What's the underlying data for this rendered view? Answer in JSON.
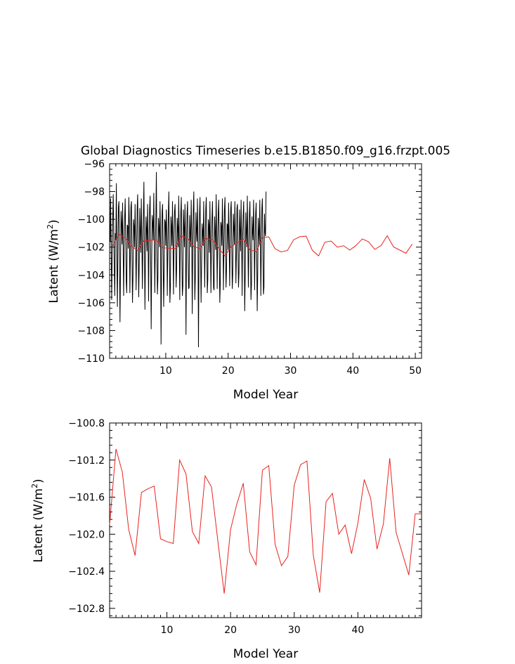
{
  "chart_data": [
    {
      "type": "line",
      "title": "Global Diagnostics Timeseries b.e15.B1850.f09_g16.frzpt.005",
      "xlabel": "Model Year",
      "ylabel": "Latent (W/m",
      "ylabel_sup": "2",
      "ylabel_close": ")",
      "xlim": [
        1,
        51
      ],
      "ylim": [
        -110,
        -96
      ],
      "xticks": [
        10,
        20,
        30,
        40,
        50
      ],
      "yticks": [
        -110,
        -108,
        -106,
        -104,
        -102,
        -100,
        -98,
        -96
      ],
      "ytick_labels": [
        "−110",
        "−108",
        "−106",
        "−104",
        "−102",
        "−100",
        "−98",
        "−96"
      ],
      "series": [
        {
          "color": "#000000",
          "style": "monthly",
          "x_start": 1.0,
          "x_step": 0.0833,
          "values": [
            -101.0,
            -101.6,
            -98.5,
            -102.3,
            -105.8,
            -102.4,
            -100.0,
            -98.2,
            -100.8,
            -103.6,
            -105.5,
            -101.0,
            -101.5,
            -97.4,
            -103.1,
            -106.3,
            -101.7,
            -99.1,
            -98.7,
            -102.8,
            -107.4,
            -103.4,
            -99.4,
            -100.3,
            -101.8,
            -98.8,
            -101.9,
            -105.5,
            -102.0,
            -99.9,
            -98.5,
            -101.4,
            -104.5,
            -105.3,
            -100.4,
            -100.5,
            -102.1,
            -98.4,
            -100.2,
            -105.3,
            -102.5,
            -99.1,
            -98.7,
            -102.4,
            -106.0,
            -104.1,
            -100.0,
            -100.5,
            -102.0,
            -98.9,
            -101.5,
            -105.1,
            -102.4,
            -99.2,
            -98.2,
            -101.8,
            -105.6,
            -103.2,
            -99.2,
            -100.9,
            -102.4,
            -98.5,
            -101.1,
            -105.0,
            -102.1,
            -99.7,
            -97.3,
            -102.2,
            -106.5,
            -102.6,
            -99.8,
            -100.7,
            -102.3,
            -98.9,
            -101.3,
            -105.9,
            -101.5,
            -99.2,
            -98.3,
            -102.7,
            -107.9,
            -103.1,
            -99.7,
            -100.2,
            -101.5,
            -98.1,
            -101.7,
            -105.3,
            -102.0,
            -99.8,
            -96.6,
            -102.5,
            -105.4,
            -104.2,
            -99.9,
            -100.6,
            -102.0,
            -98.7,
            -101.4,
            -109.0,
            -102.8,
            -99.5,
            -98.9,
            -102.5,
            -106.3,
            -103.8,
            -100.0,
            -100.2,
            -101.9,
            -99.3,
            -100.9,
            -105.5,
            -102.2,
            -99.7,
            -98.0,
            -102.2,
            -106.0,
            -104.8,
            -99.8,
            -100.5,
            -101.9,
            -98.7,
            -102.0,
            -105.4,
            -101.1,
            -99.4,
            -98.9,
            -101.6,
            -104.9,
            -103.5,
            -99.9,
            -100.6,
            -102.0,
            -98.3,
            -101.5,
            -105.8,
            -101.7,
            -99.5,
            -98.4,
            -102.7,
            -105.5,
            -104.8,
            -99.3,
            -100.6,
            -102.0,
            -98.9,
            -101.0,
            -108.3,
            -101.9,
            -99.5,
            -98.7,
            -102.8,
            -105.0,
            -104.9,
            -99.7,
            -101.0,
            -102.0,
            -98.6,
            -100.9,
            -106.8,
            -102.1,
            -99.4,
            -98.0,
            -101.9,
            -105.8,
            -104.1,
            -99.5,
            -100.8,
            -101.6,
            -98.5,
            -101.8,
            -109.2,
            -102.5,
            -99.6,
            -98.4,
            -102.4,
            -106.0,
            -103.3,
            -100.3,
            -100.9,
            -101.9,
            -98.7,
            -101.6,
            -104.9,
            -101.7,
            -99.3,
            -98.4,
            -101.9,
            -105.3,
            -104.3,
            -100.0,
            -100.4,
            -102.4,
            -98.7,
            -101.7,
            -105.3,
            -101.6,
            -99.9,
            -98.7,
            -102.2,
            -104.9,
            -105.1,
            -99.8,
            -100.9,
            -102.2,
            -98.2,
            -101.2,
            -105.0,
            -101.4,
            -99.6,
            -98.6,
            -102.1,
            -106.0,
            -104.6,
            -100.2,
            -100.5,
            -101.9,
            -98.5,
            -101.1,
            -105.1,
            -101.8,
            -99.3,
            -98.4,
            -102.3,
            -104.9,
            -103.6,
            -100.3,
            -100.4,
            -102.2,
            -98.8,
            -101.5,
            -104.8,
            -101.8,
            -99.3,
            -98.7,
            -102.1,
            -105.0,
            -103.9,
            -99.6,
            -100.6,
            -101.8,
            -98.7,
            -101.0,
            -104.6,
            -102.5,
            -99.2,
            -98.9,
            -102.2,
            -104.9,
            -103.8,
            -99.3,
            -100.8,
            -102.3,
            -98.6,
            -101.4,
            -105.5,
            -101.3,
            -99.7,
            -98.7,
            -102.1,
            -106.6,
            -103.8,
            -99.5,
            -100.9,
            -102.0,
            -98.3,
            -101.6,
            -104.9,
            -102.1,
            -99.6,
            -98.7,
            -102.3,
            -105.8,
            -104.7,
            -99.8,
            -100.9,
            -101.5,
            -98.6,
            -101.2,
            -105.1,
            -101.6,
            -99.6,
            -98.8,
            -102.1,
            -106.6,
            -103.9,
            -99.9,
            -101.0,
            -101.8,
            -98.6,
            -101.6,
            -105.5,
            -101.9,
            -99.2,
            -98.5,
            -101.9,
            -105.4,
            -104.9,
            -99.6,
            -100.9,
            -101.2,
            -98.0
          ]
        },
        {
          "color": "#e8231e",
          "style": "annual",
          "x": [
            1.5,
            2.5,
            3.5,
            4.5,
            5.5,
            6.5,
            7.5,
            8.5,
            9.5,
            10.5,
            11.5,
            12.5,
            13.5,
            14.5,
            15.5,
            16.5,
            17.5,
            18.5,
            19.5,
            20.5,
            21.5,
            22.5,
            23.5,
            24.5,
            25.5,
            26.5,
            27.5,
            28.5,
            29.5,
            30.5,
            31.5,
            32.5,
            33.5,
            34.5,
            35.5,
            36.5,
            37.5,
            38.5,
            39.5,
            40.5,
            41.5,
            42.5,
            43.5,
            44.5,
            45.5,
            46.5,
            47.5,
            48.5,
            49.5
          ],
          "values": [
            -101.9,
            -101.08,
            -101.33,
            -101.95,
            -102.23,
            -101.55,
            -101.51,
            -101.48,
            -102.05,
            -102.08,
            -102.1,
            -101.2,
            -101.35,
            -101.97,
            -102.1,
            -101.37,
            -101.49,
            -102.07,
            -102.64,
            -101.95,
            -101.67,
            -101.45,
            -102.19,
            -102.33,
            -101.31,
            -101.26,
            -102.11,
            -102.34,
            -102.24,
            -101.47,
            -101.25,
            -101.21,
            -102.23,
            -102.63,
            -101.65,
            -101.56,
            -102.0,
            -101.9,
            -102.21,
            -101.88,
            -101.41,
            -101.61,
            -102.16,
            -101.89,
            -101.18,
            -101.98,
            -102.21,
            -102.44,
            -101.78
          ]
        }
      ]
    },
    {
      "type": "line",
      "title": "",
      "xlabel": "Model Year",
      "ylabel": "Latent (W/m",
      "ylabel_sup": "2",
      "ylabel_close": ")",
      "xlim": [
        1,
        50
      ],
      "ylim": [
        -102.9,
        -100.8
      ],
      "xticks": [
        10,
        20,
        30,
        40
      ],
      "yticks": [
        -102.8,
        -102.4,
        -102.0,
        -101.6,
        -101.2,
        -100.8
      ],
      "ytick_labels": [
        "−102.8",
        "−102.4",
        "−102.0",
        "−101.6",
        "−101.2",
        "−100.8"
      ],
      "series": [
        {
          "color": "#e8231e",
          "style": "annual",
          "x": [
            1.0,
            2.0,
            3.0,
            4.0,
            5.0,
            6.0,
            7.0,
            8.0,
            9.0,
            10.0,
            11.0,
            12.0,
            13.0,
            14.0,
            15.0,
            16.0,
            17.0,
            18.0,
            19.0,
            20.0,
            21.0,
            22.0,
            23.0,
            24.0,
            25.0,
            26.0,
            27.0,
            28.0,
            29.0,
            30.0,
            31.0,
            32.0,
            33.0,
            34.0,
            35.0,
            36.0,
            37.0,
            38.0,
            39.0,
            40.0,
            41.0,
            42.0,
            43.0,
            44.0,
            45.0,
            46.0,
            47.0,
            48.0,
            49.0,
            50.0
          ],
          "values": [
            -101.9,
            -101.08,
            -101.33,
            -101.95,
            -102.23,
            -101.55,
            -101.51,
            -101.48,
            -102.05,
            -102.08,
            -102.1,
            -101.2,
            -101.35,
            -101.97,
            -102.1,
            -101.37,
            -101.49,
            -102.07,
            -102.64,
            -101.95,
            -101.67,
            -101.45,
            -102.19,
            -102.33,
            -101.31,
            -101.26,
            -102.11,
            -102.34,
            -102.24,
            -101.47,
            -101.25,
            -101.21,
            -102.23,
            -102.63,
            -101.65,
            -101.56,
            -102.0,
            -101.9,
            -102.21,
            -101.88,
            -101.41,
            -101.61,
            -102.16,
            -101.89,
            -101.18,
            -101.98,
            -102.21,
            -102.44,
            -101.78,
            -101.78
          ]
        }
      ]
    }
  ]
}
